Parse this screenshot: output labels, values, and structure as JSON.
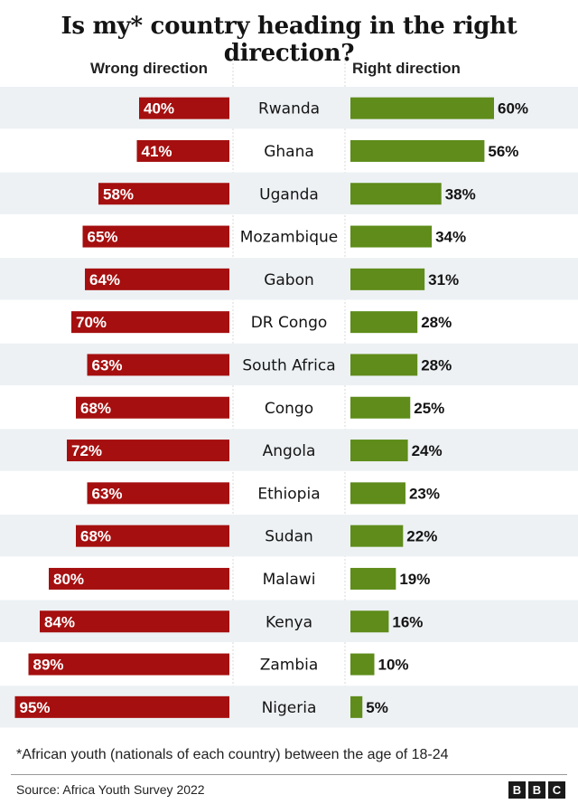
{
  "title": "Is my* country heading in the right direction?",
  "columns": {
    "left": "Wrong direction",
    "right": "Right direction"
  },
  "footnote": "*African youth (nationals of each country) between the age of 18-24",
  "source": "Source: Africa Youth Survey 2022",
  "logo": [
    "B",
    "B",
    "C"
  ],
  "colors": {
    "wrong": "#a50f0f",
    "right": "#5f8c1a",
    "stripe": "#edf1f4"
  },
  "chart_data": {
    "type": "bar",
    "categories": [
      "Rwanda",
      "Ghana",
      "Uganda",
      "Mozambique",
      "Gabon",
      "DR Congo",
      "South Africa",
      "Congo",
      "Angola",
      "Ethiopia",
      "Sudan",
      "Malawi",
      "Kenya",
      "Zambia",
      "Nigeria"
    ],
    "series": [
      {
        "name": "Wrong direction",
        "values": [
          40,
          41,
          58,
          65,
          64,
          70,
          63,
          68,
          72,
          63,
          68,
          80,
          84,
          89,
          95
        ]
      },
      {
        "name": "Right direction",
        "values": [
          60,
          56,
          38,
          34,
          31,
          28,
          28,
          25,
          24,
          23,
          22,
          19,
          16,
          10,
          5
        ]
      }
    ],
    "value_suffix": "%",
    "ylim": [
      0,
      100
    ]
  }
}
